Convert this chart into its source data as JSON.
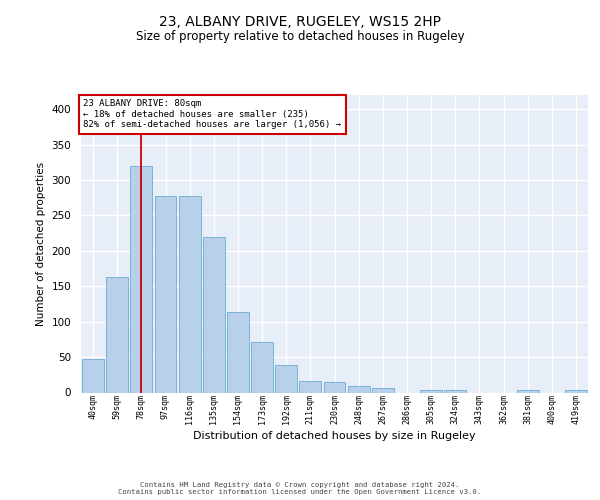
{
  "title1": "23, ALBANY DRIVE, RUGELEY, WS15 2HP",
  "title2": "Size of property relative to detached houses in Rugeley",
  "xlabel": "Distribution of detached houses by size in Rugeley",
  "ylabel": "Number of detached properties",
  "footer1": "Contains HM Land Registry data © Crown copyright and database right 2024.",
  "footer2": "Contains public sector information licensed under the Open Government Licence v3.0.",
  "annotation_title": "23 ALBANY DRIVE: 80sqm",
  "annotation_line1": "← 18% of detached houses are smaller (235)",
  "annotation_line2": "82% of semi-detached houses are larger (1,056) →",
  "bar_color": "#b8d0ea",
  "bar_edge_color": "#6aaad4",
  "marker_line_color": "#cc0000",
  "annotation_box_edgecolor": "#cc0000",
  "background_color": "#e8eef8",
  "categories": [
    "40sqm",
    "59sqm",
    "78sqm",
    "97sqm",
    "116sqm",
    "135sqm",
    "154sqm",
    "173sqm",
    "192sqm",
    "211sqm",
    "230sqm",
    "248sqm",
    "267sqm",
    "286sqm",
    "305sqm",
    "324sqm",
    "343sqm",
    "362sqm",
    "381sqm",
    "400sqm",
    "419sqm"
  ],
  "values": [
    47,
    163,
    320,
    278,
    278,
    220,
    113,
    72,
    39,
    16,
    15,
    9,
    7,
    0,
    4,
    4,
    0,
    0,
    4,
    0,
    3
  ],
  "marker_bar_index": 2,
  "ylim": [
    0,
    420
  ],
  "yticks": [
    0,
    50,
    100,
    150,
    200,
    250,
    300,
    350,
    400
  ]
}
